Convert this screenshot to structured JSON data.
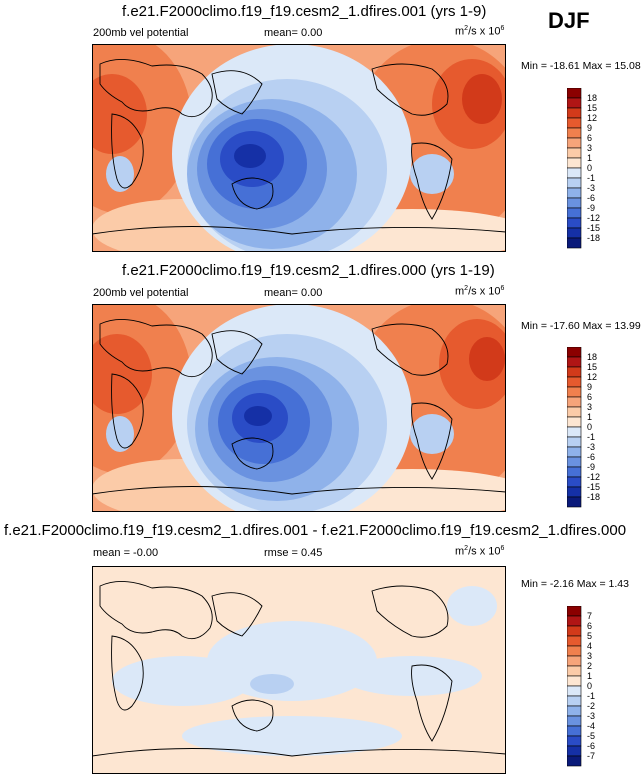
{
  "season": "DJF",
  "panels": [
    {
      "title": "f.e21.F2000climo.f19_f19.cesm2_1.dfires.001 (yrs 1-9)",
      "left_label": "200mb vel potential",
      "mid_label": "mean=  0.00",
      "units_base": "m",
      "units_sup1": "2",
      "units_mid": "/s x 10",
      "units_sup2": "6",
      "minmax": "Min = -18.61 Max = 15.08",
      "colorbar_levels": [
        "18",
        "15",
        "12",
        "9",
        "6",
        "3",
        "1",
        "0",
        "-1",
        "-3",
        "-6",
        "-9",
        "-12",
        "-15",
        "-18"
      ]
    },
    {
      "title": "f.e21.F2000climo.f19_f19.cesm2_1.dfires.000 (yrs 1-19)",
      "left_label": "200mb vel potential",
      "mid_label": "mean=  0.00",
      "units_base": "m",
      "units_sup1": "2",
      "units_mid": "/s x 10",
      "units_sup2": "6",
      "minmax": "Min = -17.60 Max = 13.99",
      "colorbar_levels": [
        "18",
        "15",
        "12",
        "9",
        "6",
        "3",
        "1",
        "0",
        "-1",
        "-3",
        "-6",
        "-9",
        "-12",
        "-15",
        "-18"
      ]
    },
    {
      "title": "f.e21.F2000climo.f19_f19.cesm2_1.dfires.001 - f.e21.F2000climo.f19_f19.cesm2_1.dfires.000",
      "left_label": "mean = -0.00",
      "mid_label": "rmse =  0.45",
      "units_base": "m",
      "units_sup1": "2",
      "units_mid": "/s x 10",
      "units_sup2": "6",
      "minmax": "Min = -2.16 Max =  1.43",
      "colorbar_levels": [
        "7",
        "6",
        "5",
        "4",
        "3",
        "2",
        "1",
        "0",
        "-1",
        "-2",
        "-3",
        "-4",
        "-5",
        "-6",
        "-7"
      ]
    }
  ],
  "colors": {
    "warm": [
      "#8b0000",
      "#b01515",
      "#d23a1a",
      "#e65a2e",
      "#f0804e",
      "#f6a47a",
      "#fbcba8",
      "#fde6d2"
    ],
    "cool": [
      "#dbe8f8",
      "#b8d0f2",
      "#8fb2ea",
      "#6a92e0",
      "#4670d6",
      "#2a4cc6",
      "#1530a6",
      "#0a1a7a"
    ],
    "map_outline": "#000000"
  }
}
